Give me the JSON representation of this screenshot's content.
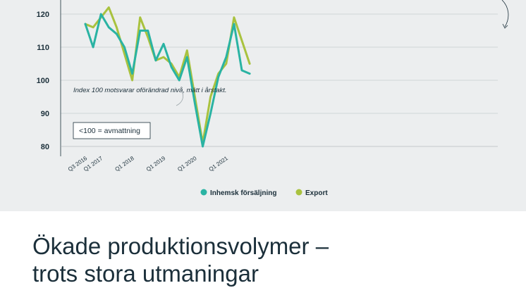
{
  "chart_data": {
    "type": "line",
    "x": [
      "Q3 2016",
      "Q4 2016",
      "Q1 2017",
      "Q2 2017",
      "Q3 2017",
      "Q4 2017",
      "Q1 2018",
      "Q2 2018",
      "Q3 2018",
      "Q4 2018",
      "Q1 2019",
      "Q2 2019",
      "Q3 2019",
      "Q4 2019",
      "Q1 2020",
      "Q2 2020",
      "Q3 2020",
      "Q4 2020",
      "Q1 2021",
      "Q2 2021",
      "Q3 2021",
      "Q4 2021"
    ],
    "x_tick_labels": [
      "Q3 2016",
      "Q1 2017",
      "Q1 2018",
      "Q1 2019",
      "Q1 2020",
      "Q1 2021"
    ],
    "y_ticks": [
      80,
      90,
      100,
      110,
      120
    ],
    "ylim": [
      77,
      124
    ],
    "series": [
      {
        "name": "Inhemsk försäljning",
        "color": "#2ab3a3",
        "values": [
          117,
          110,
          120,
          116,
          114,
          110,
          102,
          115,
          115,
          106,
          111,
          104,
          100,
          107,
          93,
          80,
          90,
          101,
          107,
          117,
          103,
          102
        ]
      },
      {
        "name": "Export",
        "color": "#a9c23f",
        "values": [
          117,
          116,
          119,
          122,
          116,
          108,
          100,
          119,
          113,
          106,
          107,
          105,
          101,
          109,
          95,
          81,
          95,
          102,
          105,
          119,
          112,
          105
        ]
      }
    ],
    "annotation": "Index 100 motsvarar oförändrad nivå, mätt i årstakt.",
    "box_label": "<100 = avmattning",
    "legend_position": "bottom-center",
    "grid": "horizontal"
  },
  "headline": {
    "line1": "Ökade produktionsvolymer –",
    "line2": "trots stora utmaningar"
  }
}
